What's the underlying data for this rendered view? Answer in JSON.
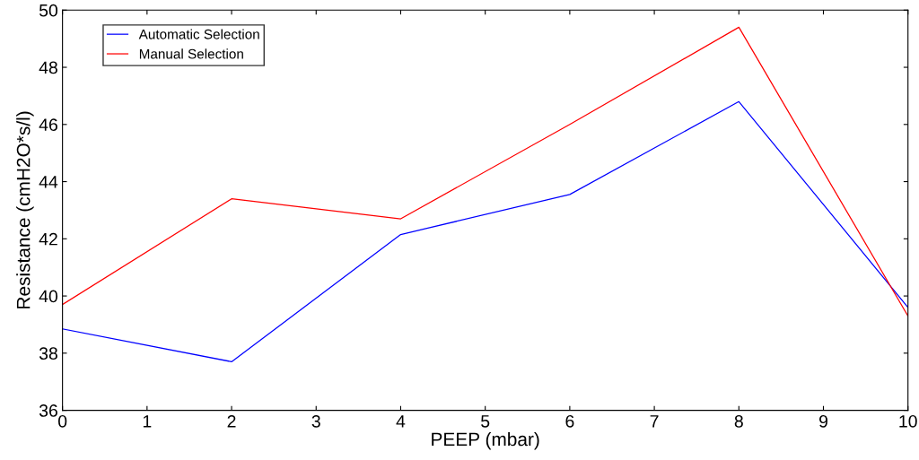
{
  "chart_data": {
    "type": "line",
    "xlabel": "PEEP (mbar)",
    "ylabel": "Resistance (cmH2O*s/l)",
    "x": [
      0,
      2,
      4,
      6,
      8,
      10
    ],
    "series": [
      {
        "name": "Automatic Selection",
        "color": "#0000ff",
        "values": [
          38.85,
          37.7,
          42.15,
          43.55,
          46.8,
          39.6
        ]
      },
      {
        "name": "Manual Selection",
        "color": "#ff0000",
        "values": [
          39.7,
          43.4,
          42.7,
          46.0,
          49.4,
          39.3
        ]
      }
    ],
    "xlim": [
      0,
      10
    ],
    "xticks": [
      0,
      1,
      2,
      3,
      4,
      5,
      6,
      7,
      8,
      9,
      10
    ],
    "ylim": [
      36,
      50
    ],
    "yticks": [
      36,
      38,
      40,
      42,
      44,
      46,
      48,
      50
    ],
    "grid": false,
    "legend": "top left",
    "marker": "none",
    "line_style": "solid"
  }
}
